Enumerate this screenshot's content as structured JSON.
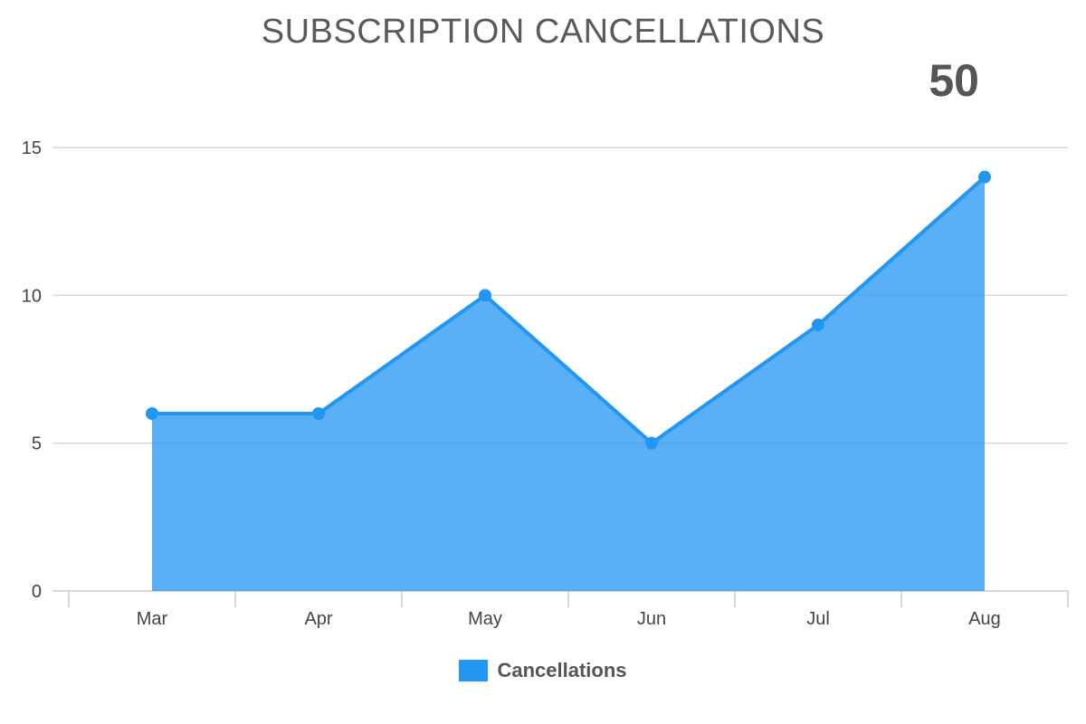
{
  "chart_data": {
    "type": "area",
    "title": "SUBSCRIPTION CANCELLATIONS",
    "total_label": "50",
    "categories": [
      "Mar",
      "Apr",
      "May",
      "Jun",
      "Jul",
      "Aug"
    ],
    "series": [
      {
        "name": "Cancellations",
        "values": [
          6,
          6,
          10,
          5,
          9,
          14
        ],
        "color": "#2196f3"
      }
    ],
    "yticks": [
      0,
      5,
      10,
      15
    ],
    "ylim": [
      0,
      15
    ],
    "grid": true,
    "legend": "bottom-center"
  }
}
